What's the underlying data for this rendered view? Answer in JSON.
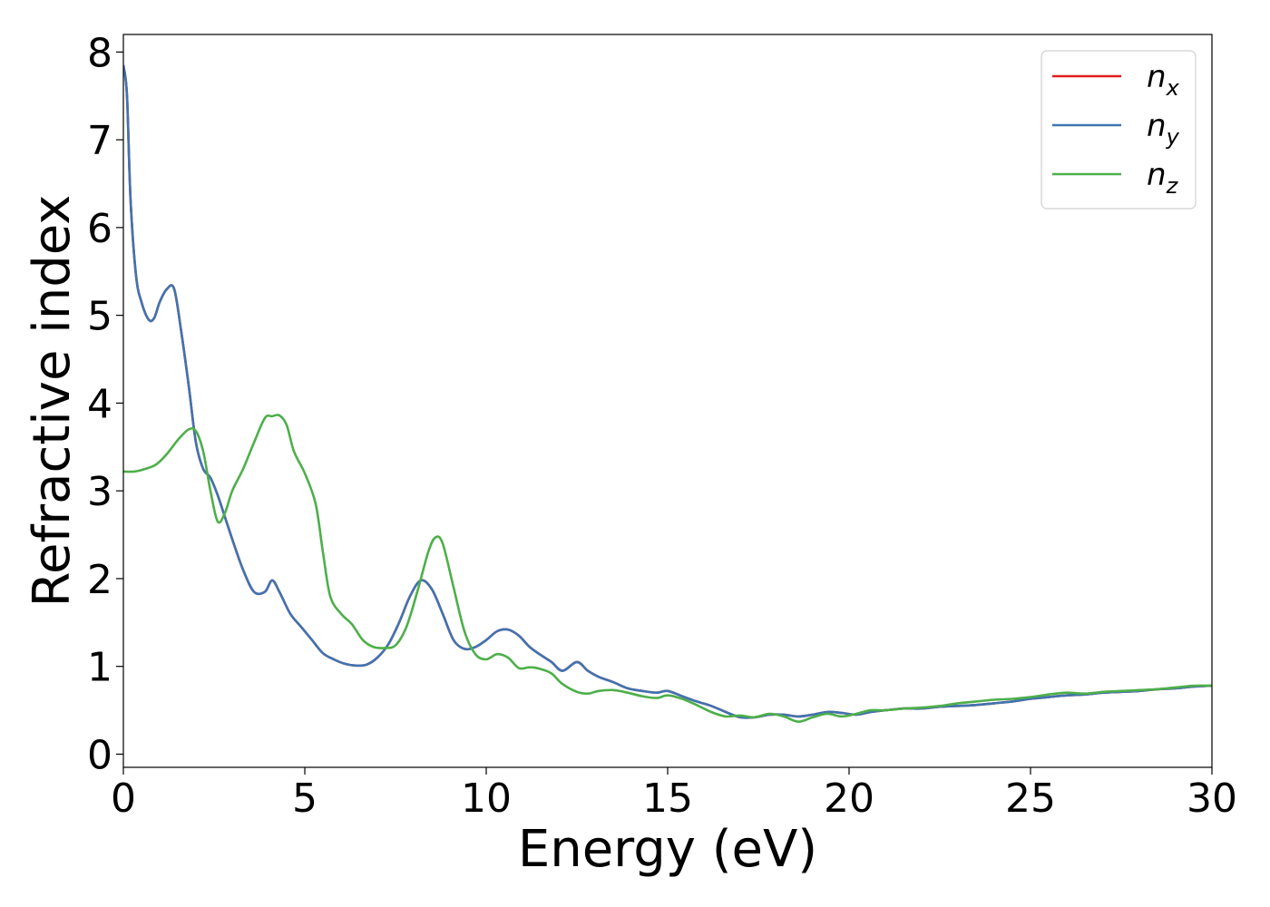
{
  "chart_data": {
    "type": "line",
    "xlabel": "Energy (eV)",
    "ylabel": "Refractive index",
    "xlim": [
      0,
      30
    ],
    "ylim": [
      -0.15,
      8.2
    ],
    "xticks": [
      0,
      5,
      10,
      15,
      20,
      25,
      30
    ],
    "yticks": [
      0,
      1,
      2,
      3,
      4,
      5,
      6,
      7,
      8
    ],
    "grid": false,
    "legend_position": "top-right",
    "series": [
      {
        "name": "n_x",
        "label_base": "n",
        "label_sub": "x",
        "color": "#e41a1c",
        "x": [
          0,
          0.1,
          0.2,
          0.35,
          0.5,
          0.7,
          0.85,
          1.0,
          1.2,
          1.4,
          1.6,
          1.8,
          2.0,
          2.2,
          2.4,
          2.6,
          2.8,
          3.0,
          3.3,
          3.6,
          3.9,
          4.1,
          4.3,
          4.6,
          4.9,
          5.2,
          5.5,
          5.8,
          6.1,
          6.4,
          6.7,
          7.0,
          7.3,
          7.6,
          7.9,
          8.2,
          8.5,
          8.8,
          9.1,
          9.4,
          9.7,
          10.0,
          10.3,
          10.6,
          10.9,
          11.2,
          11.5,
          11.8,
          12.1,
          12.5,
          12.8,
          13.1,
          13.5,
          13.9,
          14.3,
          14.7,
          15.0,
          15.4,
          15.8,
          16.2,
          16.6,
          17.0,
          17.4,
          17.8,
          18.2,
          18.6,
          19.0,
          19.4,
          19.8,
          20.2,
          20.6,
          21.0,
          21.5,
          22.0,
          22.5,
          23.0,
          23.5,
          24.0,
          24.5,
          25.0,
          25.5,
          26.0,
          26.5,
          27.0,
          27.5,
          28.0,
          28.5,
          29.0,
          29.5,
          30.0
        ],
        "values": [
          7.85,
          7.5,
          6.3,
          5.45,
          5.15,
          4.95,
          4.97,
          5.15,
          5.3,
          5.3,
          4.8,
          4.2,
          3.55,
          3.25,
          3.15,
          2.95,
          2.7,
          2.45,
          2.1,
          1.85,
          1.85,
          1.98,
          1.85,
          1.6,
          1.45,
          1.3,
          1.15,
          1.08,
          1.03,
          1.01,
          1.02,
          1.1,
          1.25,
          1.5,
          1.8,
          1.98,
          1.88,
          1.6,
          1.3,
          1.2,
          1.22,
          1.3,
          1.4,
          1.42,
          1.35,
          1.22,
          1.13,
          1.05,
          0.95,
          1.05,
          0.95,
          0.88,
          0.82,
          0.75,
          0.72,
          0.7,
          0.72,
          0.66,
          0.6,
          0.55,
          0.48,
          0.42,
          0.42,
          0.45,
          0.45,
          0.43,
          0.45,
          0.48,
          0.47,
          0.45,
          0.48,
          0.5,
          0.52,
          0.52,
          0.54,
          0.55,
          0.56,
          0.58,
          0.6,
          0.63,
          0.65,
          0.67,
          0.68,
          0.7,
          0.71,
          0.72,
          0.74,
          0.75,
          0.77,
          0.78
        ]
      },
      {
        "name": "n_y",
        "label_base": "n",
        "label_sub": "y",
        "color": "#3f74b1",
        "x": [
          0,
          0.1,
          0.2,
          0.35,
          0.5,
          0.7,
          0.85,
          1.0,
          1.2,
          1.4,
          1.6,
          1.8,
          2.0,
          2.2,
          2.4,
          2.6,
          2.8,
          3.0,
          3.3,
          3.6,
          3.9,
          4.1,
          4.3,
          4.6,
          4.9,
          5.2,
          5.5,
          5.8,
          6.1,
          6.4,
          6.7,
          7.0,
          7.3,
          7.6,
          7.9,
          8.2,
          8.5,
          8.8,
          9.1,
          9.4,
          9.7,
          10.0,
          10.3,
          10.6,
          10.9,
          11.2,
          11.5,
          11.8,
          12.1,
          12.5,
          12.8,
          13.1,
          13.5,
          13.9,
          14.3,
          14.7,
          15.0,
          15.4,
          15.8,
          16.2,
          16.6,
          17.0,
          17.4,
          17.8,
          18.2,
          18.6,
          19.0,
          19.4,
          19.8,
          20.2,
          20.6,
          21.0,
          21.5,
          22.0,
          22.5,
          23.0,
          23.5,
          24.0,
          24.5,
          25.0,
          25.5,
          26.0,
          26.5,
          27.0,
          27.5,
          28.0,
          28.5,
          29.0,
          29.5,
          30.0
        ],
        "values": [
          7.85,
          7.5,
          6.3,
          5.45,
          5.15,
          4.95,
          4.97,
          5.15,
          5.3,
          5.3,
          4.8,
          4.2,
          3.55,
          3.25,
          3.15,
          2.95,
          2.7,
          2.45,
          2.1,
          1.85,
          1.85,
          1.98,
          1.85,
          1.6,
          1.45,
          1.3,
          1.15,
          1.08,
          1.03,
          1.01,
          1.02,
          1.1,
          1.25,
          1.5,
          1.8,
          1.98,
          1.88,
          1.6,
          1.3,
          1.2,
          1.22,
          1.3,
          1.4,
          1.42,
          1.35,
          1.22,
          1.13,
          1.05,
          0.95,
          1.05,
          0.95,
          0.88,
          0.82,
          0.75,
          0.72,
          0.7,
          0.72,
          0.66,
          0.6,
          0.55,
          0.48,
          0.42,
          0.42,
          0.45,
          0.45,
          0.43,
          0.45,
          0.48,
          0.47,
          0.45,
          0.48,
          0.5,
          0.52,
          0.52,
          0.54,
          0.55,
          0.56,
          0.58,
          0.6,
          0.63,
          0.65,
          0.67,
          0.68,
          0.7,
          0.71,
          0.72,
          0.74,
          0.75,
          0.77,
          0.78
        ]
      },
      {
        "name": "n_z",
        "label_base": "n",
        "label_sub": "z",
        "color": "#4daf4a",
        "x": [
          0,
          0.3,
          0.6,
          0.9,
          1.2,
          1.5,
          1.8,
          2.0,
          2.2,
          2.4,
          2.6,
          2.8,
          3.0,
          3.3,
          3.6,
          3.9,
          4.1,
          4.3,
          4.5,
          4.7,
          5.0,
          5.3,
          5.5,
          5.7,
          6.0,
          6.3,
          6.6,
          6.9,
          7.2,
          7.5,
          7.8,
          8.1,
          8.4,
          8.6,
          8.8,
          9.1,
          9.4,
          9.7,
          10.0,
          10.3,
          10.6,
          10.9,
          11.2,
          11.5,
          11.8,
          12.1,
          12.5,
          12.8,
          13.1,
          13.5,
          13.9,
          14.3,
          14.7,
          15.0,
          15.4,
          15.8,
          16.2,
          16.6,
          17.0,
          17.4,
          17.8,
          18.2,
          18.6,
          19.0,
          19.4,
          19.8,
          20.2,
          20.6,
          21.0,
          21.5,
          22.0,
          22.5,
          23.0,
          23.5,
          24.0,
          24.5,
          25.0,
          25.5,
          26.0,
          26.5,
          27.0,
          27.5,
          28.0,
          28.5,
          29.0,
          29.5,
          30.0
        ],
        "values": [
          3.22,
          3.22,
          3.25,
          3.3,
          3.42,
          3.58,
          3.7,
          3.68,
          3.45,
          3.0,
          2.65,
          2.75,
          3.0,
          3.25,
          3.55,
          3.83,
          3.85,
          3.86,
          3.75,
          3.45,
          3.2,
          2.85,
          2.3,
          1.8,
          1.6,
          1.48,
          1.3,
          1.22,
          1.21,
          1.24,
          1.45,
          1.85,
          2.3,
          2.47,
          2.4,
          1.9,
          1.4,
          1.14,
          1.08,
          1.14,
          1.1,
          0.98,
          0.99,
          0.97,
          0.92,
          0.8,
          0.71,
          0.69,
          0.72,
          0.73,
          0.7,
          0.66,
          0.64,
          0.67,
          0.63,
          0.56,
          0.48,
          0.43,
          0.44,
          0.42,
          0.46,
          0.43,
          0.37,
          0.42,
          0.46,
          0.43,
          0.46,
          0.5,
          0.5,
          0.52,
          0.53,
          0.55,
          0.58,
          0.6,
          0.62,
          0.63,
          0.65,
          0.68,
          0.7,
          0.69,
          0.71,
          0.72,
          0.73,
          0.74,
          0.76,
          0.78,
          0.78
        ]
      }
    ]
  }
}
